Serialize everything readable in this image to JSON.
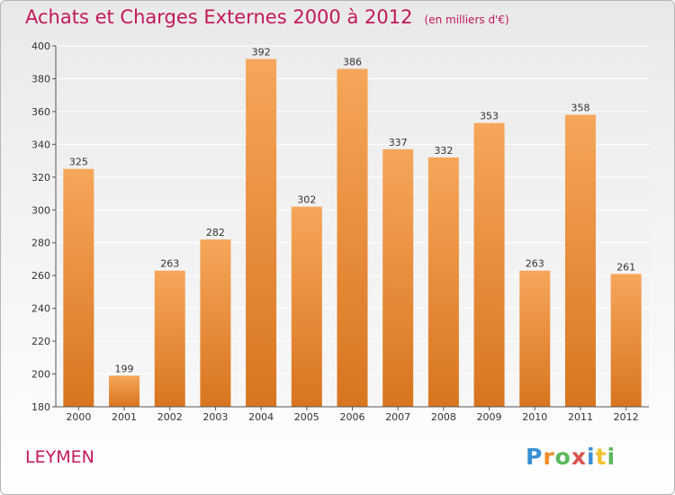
{
  "title": "Achats et Charges Externes 2000 à 2012",
  "unit": "(en milliers d'€)",
  "commune": "LEYMEN",
  "logo": {
    "letters": [
      "P",
      "r",
      "o",
      "x",
      "i",
      "t",
      "i"
    ],
    "colors": [
      "#3a8fd6",
      "#f28c28",
      "#5cb85c",
      "#d9534f",
      "#3a8fd6",
      "#f2c12e",
      "#5cb85c"
    ]
  },
  "colors": {
    "title": "#c2185b",
    "bar_top": "#f6a65a",
    "bar_bottom": "#d8751f",
    "grid": "#ffffff",
    "axis": "#555555",
    "plot_bg": "#e3e3e3"
  },
  "chart_data": {
    "type": "bar",
    "title": "Achats et Charges Externes 2000 à 2012",
    "subtitle": "(en milliers d'€)",
    "categories": [
      "2000",
      "2001",
      "2002",
      "2003",
      "2004",
      "2005",
      "2006",
      "2007",
      "2008",
      "2009",
      "2010",
      "2011",
      "2012"
    ],
    "values": [
      325,
      199,
      263,
      282,
      392,
      302,
      386,
      337,
      332,
      353,
      263,
      358,
      261
    ],
    "ylim": [
      180,
      400
    ],
    "yticks": [
      180,
      200,
      220,
      240,
      260,
      280,
      300,
      320,
      340,
      360,
      380,
      400
    ],
    "xlabel": "",
    "ylabel": "",
    "grid": true
  }
}
